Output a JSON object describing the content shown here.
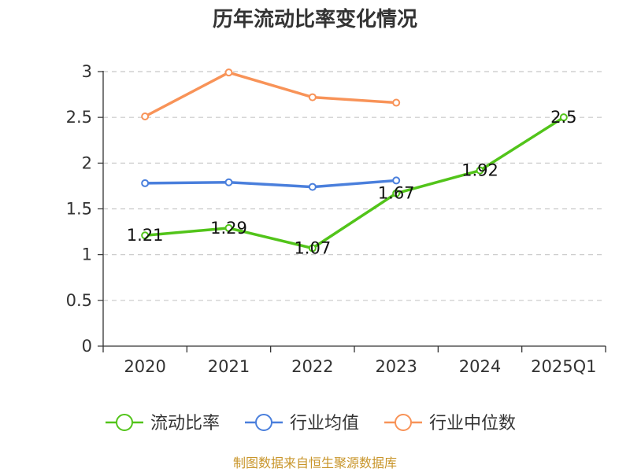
{
  "chart_data": {
    "type": "line",
    "title": "历年流动比率变化情况",
    "categories": [
      "2020",
      "2021",
      "2022",
      "2023",
      "2024",
      "2025Q1"
    ],
    "ylim": [
      0,
      3
    ],
    "yticks": [
      "0",
      "0.5",
      "1",
      "1.5",
      "2",
      "2.5",
      "3"
    ],
    "grid": true,
    "legend_position": "bottom",
    "series": [
      {
        "name": "流动比率",
        "color": "#52c41a",
        "values": [
          1.21,
          1.29,
          1.07,
          1.67,
          1.92,
          2.5
        ],
        "labels": [
          "1.21",
          "1.29",
          "1.07",
          "1.67",
          "1.92",
          "2.5"
        ]
      },
      {
        "name": "行业均值",
        "color": "#4a7fdc",
        "values": [
          1.78,
          1.79,
          1.74,
          1.81,
          null,
          null
        ]
      },
      {
        "name": "行业中位数",
        "color": "#f89358",
        "values": [
          2.51,
          2.99,
          2.72,
          2.66,
          null,
          null
        ]
      }
    ]
  },
  "footer": {
    "source": "制图数据来自恒生聚源数据库"
  }
}
